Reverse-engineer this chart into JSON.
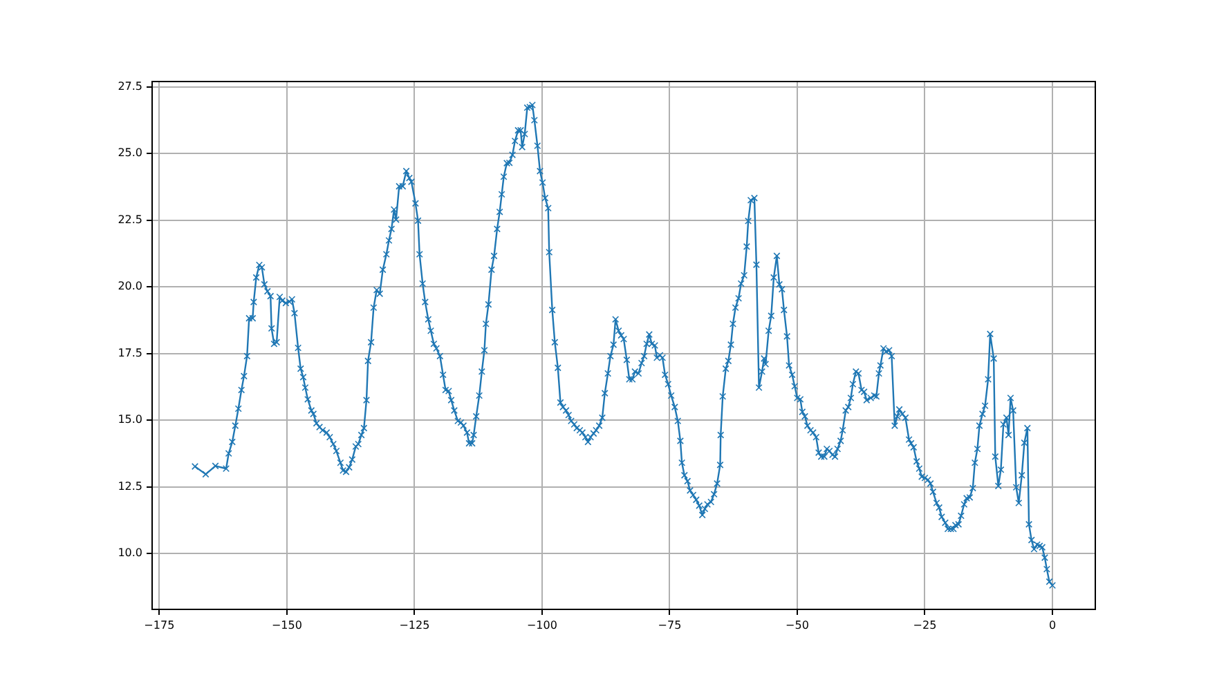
{
  "chart_data": {
    "type": "line",
    "marker": "cross",
    "line_style": "solid",
    "grid": true,
    "legend": false,
    "xlim": [
      -176.4,
      8.4
    ],
    "ylim": [
      7.9,
      27.7
    ],
    "xticks": [
      {
        "value": -175,
        "label": "−175"
      },
      {
        "value": -150,
        "label": "−150"
      },
      {
        "value": -125,
        "label": "−125"
      },
      {
        "value": -100,
        "label": "−100"
      },
      {
        "value": -75,
        "label": "−75"
      },
      {
        "value": -50,
        "label": "−50"
      },
      {
        "value": -25,
        "label": "−25"
      },
      {
        "value": 0,
        "label": "0"
      }
    ],
    "yticks": [
      {
        "value": 10,
        "label": "10.0"
      },
      {
        "value": 12.5,
        "label": "12.5"
      },
      {
        "value": 15,
        "label": "15.0"
      },
      {
        "value": 17.5,
        "label": "17.5"
      },
      {
        "value": 20,
        "label": "20.0"
      },
      {
        "value": 22.5,
        "label": "22.5"
      },
      {
        "value": 25,
        "label": "25.0"
      },
      {
        "value": 27.5,
        "label": "27.5"
      }
    ],
    "series": [
      {
        "color": "#1f77b4",
        "x": [
          -168,
          -165.9,
          -164,
          -161.9,
          -161.4,
          -160.7,
          -160.1,
          -159.5,
          -158.9,
          -158.4,
          -157.8,
          -157.4,
          -156.7,
          -156.5,
          -156,
          -155.4,
          -154.9,
          -154.4,
          -153.8,
          -153.2,
          -153,
          -152.5,
          -152,
          -151.4,
          -150.9,
          -150.2,
          -149.5,
          -149,
          -148.5,
          -147.8,
          -147.3,
          -146.8,
          -146.4,
          -145.9,
          -145.2,
          -144.8,
          -144.2,
          -143.6,
          -143,
          -142.2,
          -141.6,
          -140.9,
          -140.3,
          -139.5,
          -139,
          -138.4,
          -137.8,
          -137.2,
          -136.5,
          -136,
          -135.4,
          -134.9,
          -134.4,
          -134.1,
          -133.5,
          -133,
          -132.4,
          -131.8,
          -131.2,
          -130.5,
          -130,
          -129.5,
          -129,
          -128.6,
          -128,
          -127.3,
          -126.6,
          -126,
          -125.6,
          -124.8,
          -124.3,
          -124,
          -123.4,
          -122.9,
          -122.3,
          -121.8,
          -121.2,
          -120.7,
          -120,
          -119.4,
          -118.9,
          -118.3,
          -117.8,
          -117.2,
          -116.5,
          -115.9,
          -115.4,
          -114.7,
          -114.3,
          -113.7,
          -113.4,
          -112.9,
          -112.3,
          -111.8,
          -111.3,
          -111,
          -110.5,
          -109.9,
          -109.4,
          -108.8,
          -108.3,
          -107.9,
          -107.5,
          -106.9,
          -106.4,
          -105.8,
          -105.3,
          -104.7,
          -104.2,
          -103.9,
          -103.4,
          -102.9,
          -102.4,
          -101.9,
          -101.5,
          -100.9,
          -100.4,
          -99.9,
          -99.4,
          -98.8,
          -98.6,
          -98,
          -97.5,
          -96.9,
          -96.4,
          -95.9,
          -95.3,
          -94.8,
          -94.3,
          -93.7,
          -93.2,
          -92.6,
          -92.1,
          -91.5,
          -91,
          -90.5,
          -89.9,
          -89.4,
          -88.8,
          -88.2,
          -87.7,
          -87.1,
          -86.6,
          -86,
          -85.6,
          -85,
          -84.5,
          -84,
          -83.4,
          -82.9,
          -82.3,
          -81.8,
          -81.1,
          -80.5,
          -80,
          -79.5,
          -79,
          -78.5,
          -77.9,
          -77.5,
          -76.9,
          -76.4,
          -75.9,
          -75.3,
          -74.7,
          -74,
          -73.4,
          -72.9,
          -72.6,
          -72.1,
          -71.5,
          -71,
          -70.4,
          -69.8,
          -69.2,
          -68.6,
          -68.1,
          -67.6,
          -66.9,
          -66.3,
          -65.7,
          -65.1,
          -65,
          -64.6,
          -64,
          -63.5,
          -63,
          -62.6,
          -62.1,
          -61.5,
          -61,
          -60.4,
          -59.9,
          -59.6,
          -59.1,
          -58.4,
          -58,
          -57.5,
          -56.9,
          -56.5,
          -56.2,
          -55.6,
          -55.1,
          -54.6,
          -54,
          -53.5,
          -53,
          -52.6,
          -52,
          -51.6,
          -51,
          -50.5,
          -50,
          -49.4,
          -49,
          -48.5,
          -48,
          -47.4,
          -46.9,
          -46.3,
          -45.8,
          -45.3,
          -44.7,
          -44.2,
          -43.7,
          -43.1,
          -42.6,
          -42.1,
          -41.5,
          -41.1,
          -40.5,
          -40,
          -39.5,
          -39.1,
          -38.5,
          -38,
          -37.4,
          -36.9,
          -36.4,
          -35.6,
          -34.9,
          -34.5,
          -34,
          -33.7,
          -33.1,
          -32.6,
          -32,
          -31.5,
          -30.9,
          -30.4,
          -30,
          -29.4,
          -28.8,
          -28.1,
          -27.7,
          -27.2,
          -26.6,
          -26.1,
          -25.6,
          -25,
          -24.4,
          -23.9,
          -23.4,
          -22.7,
          -22.2,
          -21.7,
          -21,
          -20.5,
          -19.9,
          -19.4,
          -19,
          -18.4,
          -17.9,
          -17.3,
          -16.8,
          -16.2,
          -15.6,
          -15.2,
          -14.7,
          -14.3,
          -13.7,
          -13.2,
          -12.6,
          -12.2,
          -11.5,
          -11.2,
          -10.6,
          -10.1,
          -9.6,
          -9,
          -8.6,
          -8.2,
          -7.7,
          -7.1,
          -6.6,
          -6,
          -5.5,
          -4.9,
          -4.6,
          -4.1,
          -3.6,
          -3,
          -2.5,
          -2,
          -1.5,
          -1.1,
          -0.6,
          0
        ],
        "values": [
          13.26,
          12.97,
          13.28,
          13.18,
          13.75,
          14.18,
          14.79,
          15.43,
          16.13,
          16.65,
          17.4,
          18.82,
          18.82,
          19.43,
          20.35,
          20.82,
          20.73,
          20.09,
          19.83,
          19.65,
          18.44,
          17.86,
          17.92,
          19.62,
          19.48,
          19.39,
          19.44,
          19.53,
          19.01,
          17.71,
          16.93,
          16.61,
          16.22,
          15.78,
          15.36,
          15.23,
          14.88,
          14.74,
          14.62,
          14.53,
          14.36,
          14.1,
          13.84,
          13.4,
          13.11,
          13.06,
          13.23,
          13.52,
          14.01,
          14.1,
          14.44,
          14.7,
          15.75,
          17.22,
          17.92,
          19.22,
          19.88,
          19.74,
          20.64,
          21.22,
          21.74,
          22.17,
          22.9,
          22.52,
          23.77,
          23.77,
          24.34,
          24.08,
          23.94,
          23.13,
          22.48,
          21.22,
          20.12,
          19.43,
          18.78,
          18.35,
          17.86,
          17.69,
          17.4,
          16.7,
          16.13,
          16.09,
          15.75,
          15.36,
          14.97,
          14.91,
          14.79,
          14.53,
          14.13,
          14.13,
          14.44,
          15.14,
          15.92,
          16.82,
          17.62,
          18.61,
          19.34,
          20.64,
          21.16,
          22.17,
          22.81,
          23.47,
          24.13,
          24.64,
          24.65,
          24.95,
          25.47,
          25.87,
          25.87,
          25.24,
          25.73,
          26.72,
          26.74,
          26.82,
          26.25,
          25.29,
          24.34,
          23.91,
          23.33,
          22.95,
          21.3,
          19.13,
          17.92,
          16.96,
          15.66,
          15.49,
          15.36,
          15.19,
          14.97,
          14.84,
          14.7,
          14.62,
          14.53,
          14.36,
          14.18,
          14.36,
          14.5,
          14.62,
          14.79,
          15.09,
          16.01,
          16.75,
          17.4,
          17.83,
          18.78,
          18.35,
          18.18,
          18.04,
          17.26,
          16.53,
          16.53,
          16.82,
          16.75,
          17.14,
          17.4,
          17.86,
          18.21,
          17.86,
          17.8,
          17.34,
          17.43,
          17.34,
          16.7,
          16.35,
          15.92,
          15.49,
          14.97,
          14.22,
          13.4,
          12.93,
          12.71,
          12.36,
          12.19,
          12.01,
          11.79,
          11.44,
          11.67,
          11.84,
          11.93,
          12.22,
          12.62,
          13.32,
          14.44,
          15.89,
          16.93,
          17.22,
          17.83,
          18.61,
          19.22,
          19.57,
          20.12,
          20.43,
          21.51,
          22.47,
          23.25,
          23.33,
          20.83,
          16.22,
          16.82,
          17.31,
          17.1,
          18.35,
          18.91,
          20.35,
          21.16,
          20.09,
          19.91,
          19.13,
          18.14,
          17.05,
          16.7,
          16.27,
          15.83,
          15.78,
          15.31,
          15.14,
          14.79,
          14.62,
          14.53,
          14.36,
          13.78,
          13.63,
          13.63,
          13.92,
          13.84,
          13.7,
          13.63,
          13.92,
          14.22,
          14.62,
          15.36,
          15.49,
          15.83,
          16.35,
          16.82,
          16.75,
          16.13,
          16.06,
          15.75,
          15.83,
          15.92,
          15.89,
          16.75,
          17.05,
          17.69,
          17.57,
          17.62,
          17.4,
          14.79,
          15.14,
          15.4,
          15.23,
          15.09,
          14.27,
          14.13,
          13.98,
          13.45,
          13.18,
          12.88,
          12.83,
          12.76,
          12.62,
          12.31,
          11.89,
          11.72,
          11.37,
          11.15,
          10.92,
          10.92,
          10.92,
          11.06,
          11.09,
          11.41,
          11.84,
          12.07,
          12.1,
          12.45,
          13.4,
          13.92,
          14.79,
          15.23,
          15.54,
          16.53,
          18.23,
          17.31,
          13.63,
          12.53,
          13.14,
          14.84,
          15.09,
          14.44,
          15.83,
          15.36,
          12.48,
          11.89,
          12.93,
          14.15,
          14.7,
          11.09,
          10.5,
          10.16,
          10.33,
          10.28,
          10.23,
          9.84,
          9.41,
          8.94,
          8.8
        ]
      }
    ]
  }
}
